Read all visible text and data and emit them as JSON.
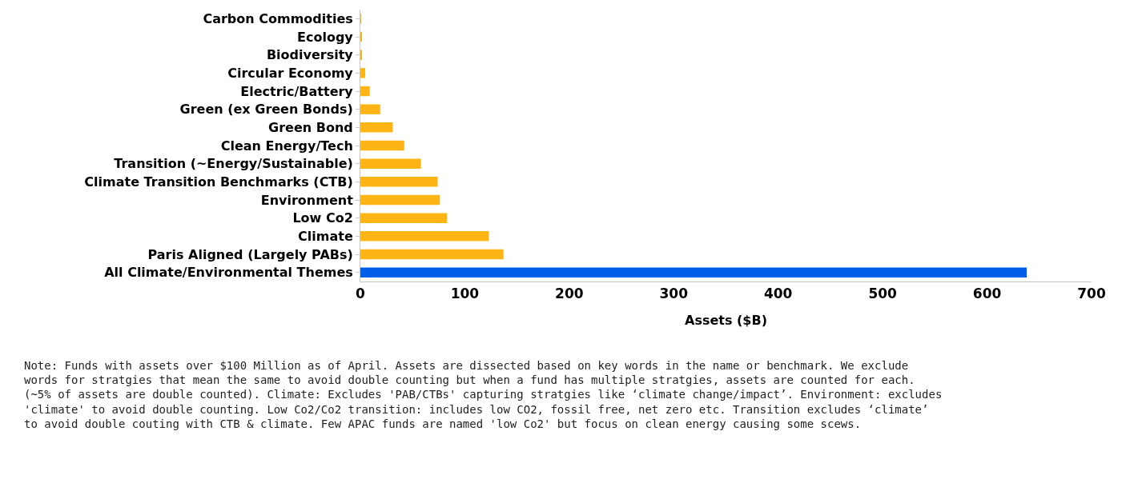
{
  "chart_data": {
    "type": "bar",
    "orientation": "horizontal",
    "xlabel": "Assets ($B)",
    "categories": [
      "Carbon Commodities",
      "Ecology",
      "Biodiversity",
      "Circular Economy",
      "Electric/Battery",
      "Green (ex Green Bonds)",
      "Green Bond",
      "Clean Energy/Tech",
      "Transition (~Energy/Sustainable)",
      "Climate Transition Benchmarks (CTB)",
      "Environment",
      "Low Co2",
      "Climate",
      "Paris Aligned (Largely PABs)",
      "All Climate/Environmental Themes"
    ],
    "values": [
      0.3,
      1,
      1,
      4.6,
      9,
      19,
      31,
      42,
      58,
      74,
      76,
      83,
      123,
      137,
      638
    ],
    "colors": [
      "#fdb515",
      "#fdb515",
      "#fdb515",
      "#fdb515",
      "#fdb515",
      "#fdb515",
      "#fdb515",
      "#fdb515",
      "#fdb515",
      "#fdb515",
      "#fdb515",
      "#fdb515",
      "#fdb515",
      "#fdb515",
      "#005fe8"
    ],
    "xlim": [
      0,
      700
    ],
    "xticks": [
      0,
      100,
      200,
      300,
      400,
      500,
      600,
      700
    ],
    "annotations": [
      "Note: Funds with assets over $100 Million as of April. Assets are dissected based on key words in the name or benchmark. We exclude\nwords for stratgies that mean the same to avoid double counting but when a fund has multiple stratgies, assets are counted for each.\n(~5% of assets are double counted). Climate: Excludes 'PAB/CTBs' capturing stratgies like ‘climate change/impact’. Environment: excludes\n'climate' to avoid double counting. Low Co2/Co2 transition: includes low CO2, fossil free, net zero etc. Transition excludes ‘climate’\nto avoid double couting with CTB & climate. Few APAC funds are named 'low Co2' but focus on clean energy causing some scews."
    ]
  }
}
